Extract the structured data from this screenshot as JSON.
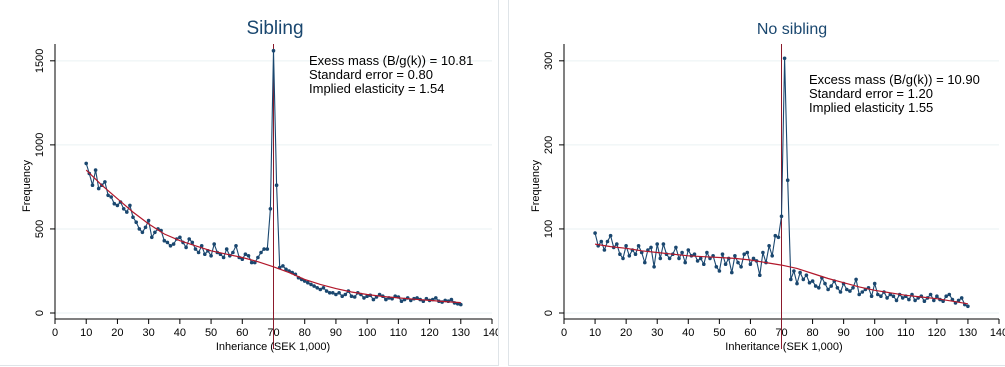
{
  "chart_data": [
    {
      "type": "line",
      "title": "Sibling",
      "xlabel": "Inheriance (SEK 1,000)",
      "ylabel": "Frequency",
      "xlim": [
        0,
        140
      ],
      "ylim": [
        0,
        1600
      ],
      "xticks": [
        "0",
        "10",
        "20",
        "30",
        "40",
        "50",
        "60",
        "70",
        "80",
        "90",
        "100",
        "110",
        "120",
        "130",
        "140"
      ],
      "yticks": [
        "0",
        "500",
        "1000",
        "1500"
      ],
      "grid": true,
      "threshold_x": 70,
      "annotations": [
        "Exess mass (B/g(k)) = 10.81",
        "Standard error = 0.80",
        "Implied elasticity = 1.54"
      ],
      "series": [
        {
          "type": "observed",
          "x": [
            10,
            11,
            12,
            13,
            14,
            15,
            16,
            17,
            18,
            19,
            20,
            21,
            22,
            23,
            24,
            25,
            26,
            27,
            28,
            29,
            30,
            31,
            32,
            33,
            34,
            35,
            36,
            37,
            38,
            39,
            40,
            41,
            42,
            43,
            44,
            45,
            46,
            47,
            48,
            49,
            50,
            51,
            52,
            53,
            54,
            55,
            56,
            57,
            58,
            59,
            60,
            61,
            62,
            63,
            64,
            65,
            66,
            67,
            68,
            69,
            70,
            71,
            72,
            73,
            74,
            75,
            76,
            77,
            78,
            79,
            80,
            81,
            82,
            83,
            84,
            85,
            86,
            87,
            88,
            89,
            90,
            91,
            92,
            93,
            94,
            95,
            96,
            97,
            98,
            99,
            100,
            101,
            102,
            103,
            104,
            105,
            106,
            107,
            108,
            109,
            110,
            111,
            112,
            113,
            114,
            115,
            116,
            117,
            118,
            119,
            120,
            121,
            122,
            123,
            124,
            125,
            126,
            127,
            128,
            129,
            130
          ],
          "values": [
            890,
            830,
            760,
            850,
            740,
            760,
            780,
            700,
            690,
            650,
            640,
            660,
            620,
            600,
            640,
            570,
            540,
            500,
            480,
            510,
            550,
            450,
            480,
            500,
            490,
            430,
            420,
            400,
            410,
            440,
            450,
            420,
            390,
            440,
            420,
            380,
            360,
            400,
            350,
            370,
            340,
            410,
            360,
            350,
            330,
            380,
            340,
            360,
            400,
            330,
            320,
            350,
            340,
            300,
            300,
            330,
            360,
            380,
            380,
            620,
            1560,
            760,
            270,
            280,
            260,
            250,
            240,
            230,
            210,
            200,
            190,
            180,
            170,
            160,
            150,
            140,
            150,
            130,
            120,
            120,
            110,
            120,
            100,
            110,
            130,
            100,
            95,
            120,
            110,
            90,
            100,
            105,
            80,
            95,
            110,
            100,
            80,
            90,
            85,
            100,
            95,
            70,
            80,
            90,
            75,
            85,
            90,
            80,
            70,
            85,
            75,
            80,
            90,
            70,
            65,
            75,
            70,
            80,
            60,
            55,
            50
          ],
          "color": "#1a476f"
        },
        {
          "type": "counterfactual",
          "x": [
            10,
            15,
            20,
            25,
            30,
            35,
            40,
            45,
            50,
            55,
            60,
            65,
            70,
            75,
            80,
            85,
            90,
            95,
            100,
            105,
            110,
            115,
            120,
            125,
            130
          ],
          "values": [
            850,
            760,
            680,
            600,
            530,
            470,
            430,
            400,
            370,
            350,
            330,
            305,
            275,
            240,
            200,
            170,
            145,
            125,
            110,
            98,
            90,
            82,
            75,
            68,
            62
          ],
          "color": "#b2182b"
        }
      ]
    },
    {
      "type": "line",
      "title": "No sibling",
      "xlabel": "Inheritance (SEK 1,000)",
      "ylabel": "Frequency",
      "xlim": [
        0,
        140
      ],
      "ylim": [
        0,
        320
      ],
      "xticks": [
        "0",
        "10",
        "20",
        "30",
        "40",
        "50",
        "60",
        "70",
        "80",
        "90",
        "100",
        "110",
        "120",
        "130",
        "140"
      ],
      "yticks": [
        "0",
        "100",
        "200",
        "300"
      ],
      "grid": true,
      "threshold_x": 70,
      "annotations": [
        "Excess mass (B/g(k)) = 10.90",
        "Standard error = 1.20",
        "Implied elasticity 1.55"
      ],
      "series": [
        {
          "type": "observed",
          "x": [
            10,
            11,
            12,
            13,
            14,
            15,
            16,
            17,
            18,
            19,
            20,
            21,
            22,
            23,
            24,
            25,
            26,
            27,
            28,
            29,
            30,
            31,
            32,
            33,
            34,
            35,
            36,
            37,
            38,
            39,
            40,
            41,
            42,
            43,
            44,
            45,
            46,
            47,
            48,
            49,
            50,
            51,
            52,
            53,
            54,
            55,
            56,
            57,
            58,
            59,
            60,
            61,
            62,
            63,
            64,
            65,
            66,
            67,
            68,
            69,
            70,
            71,
            72,
            73,
            74,
            75,
            76,
            77,
            78,
            79,
            80,
            81,
            82,
            83,
            84,
            85,
            86,
            87,
            88,
            89,
            90,
            91,
            92,
            93,
            94,
            95,
            96,
            97,
            98,
            99,
            100,
            101,
            102,
            103,
            104,
            105,
            106,
            107,
            108,
            109,
            110,
            111,
            112,
            113,
            114,
            115,
            116,
            117,
            118,
            119,
            120,
            121,
            122,
            123,
            124,
            125,
            126,
            127,
            128,
            129,
            130
          ],
          "values": [
            95,
            80,
            85,
            75,
            85,
            92,
            78,
            82,
            70,
            65,
            80,
            68,
            75,
            70,
            80,
            72,
            60,
            75,
            78,
            55,
            82,
            65,
            82,
            70,
            65,
            70,
            78,
            65,
            72,
            60,
            75,
            68,
            70,
            62,
            65,
            58,
            72,
            65,
            68,
            55,
            50,
            70,
            58,
            65,
            48,
            68,
            60,
            55,
            70,
            72,
            58,
            65,
            62,
            45,
            72,
            60,
            80,
            68,
            92,
            90,
            115,
            303,
            158,
            40,
            50,
            35,
            48,
            40,
            45,
            36,
            38,
            32,
            30,
            42,
            35,
            28,
            32,
            38,
            30,
            25,
            35,
            28,
            26,
            30,
            40,
            22,
            25,
            28,
            30,
            20,
            35,
            22,
            20,
            25,
            18,
            22,
            20,
            15,
            22,
            18,
            20,
            16,
            22,
            15,
            18,
            20,
            14,
            18,
            22,
            15,
            20,
            16,
            14,
            20,
            22,
            16,
            12,
            15,
            18,
            10,
            8
          ],
          "color": "#1a476f"
        },
        {
          "type": "counterfactual",
          "x": [
            10,
            15,
            20,
            25,
            30,
            35,
            40,
            45,
            50,
            55,
            60,
            65,
            70,
            75,
            80,
            85,
            90,
            95,
            100,
            105,
            110,
            115,
            120,
            125,
            130
          ],
          "values": [
            82,
            79,
            77,
            74,
            72,
            70,
            68,
            67,
            66,
            65,
            63,
            60,
            57,
            53,
            47,
            41,
            36,
            31,
            27,
            24,
            21,
            19,
            17,
            14,
            11
          ],
          "color": "#b2182b"
        }
      ]
    }
  ]
}
